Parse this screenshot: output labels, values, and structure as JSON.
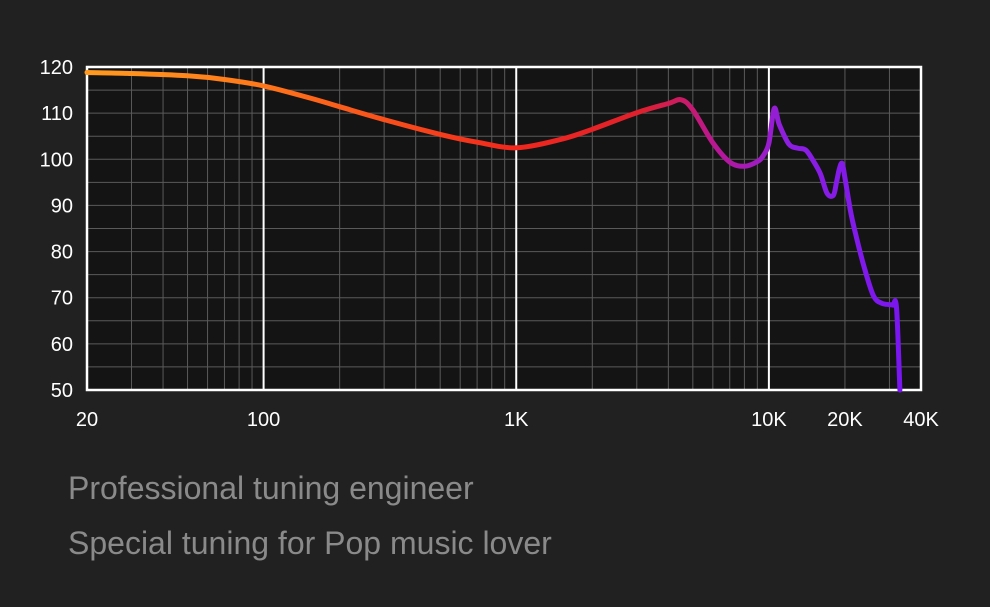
{
  "chart_data": {
    "type": "line",
    "title": "",
    "xlabel": "",
    "ylabel": "",
    "xscale": "log",
    "xlim": [
      20,
      40000
    ],
    "ylim": [
      50,
      120
    ],
    "grid": true,
    "x_ticks": [
      {
        "value": 20,
        "label": "20"
      },
      {
        "value": 100,
        "label": "100"
      },
      {
        "value": 1000,
        "label": "1K"
      },
      {
        "value": 10000,
        "label": "10K"
      },
      {
        "value": 20000,
        "label": "20K"
      },
      {
        "value": 40000,
        "label": "40K"
      }
    ],
    "y_ticks": [
      {
        "value": 120,
        "label": "120"
      },
      {
        "value": 110,
        "label": "110"
      },
      {
        "value": 100,
        "label": "100"
      },
      {
        "value": 90,
        "label": "90"
      },
      {
        "value": 80,
        "label": "80"
      },
      {
        "value": 70,
        "label": "70"
      },
      {
        "value": 60,
        "label": "60"
      },
      {
        "value": 50,
        "label": "50"
      }
    ],
    "series": [
      {
        "gradient_colors": [
          "#ff9a1f",
          "#ff7a1a",
          "#f2281c",
          "#e0202c",
          "#b5179a",
          "#8e1fe0",
          "#7a16f0"
        ],
        "x": [
          20,
          30,
          50,
          70,
          100,
          150,
          200,
          300,
          500,
          700,
          1000,
          1500,
          2000,
          3000,
          4000,
          4500,
          5000,
          6000,
          7000,
          8000,
          9000,
          9500,
          10000,
          10500,
          11000,
          12000,
          13000,
          14000,
          15000,
          16000,
          17000,
          18000,
          18500,
          19000,
          19500,
          20000,
          21000,
          22000,
          24000,
          26000,
          28000,
          30000,
          31000,
          32000,
          33000
        ],
        "values": [
          118.8,
          118.6,
          118.1,
          117.3,
          115.9,
          113.4,
          111.4,
          108.6,
          105.4,
          103.7,
          102.5,
          104.3,
          106.5,
          110.1,
          112.1,
          112.9,
          110.7,
          103.6,
          99.4,
          98.5,
          99.5,
          100.8,
          103.5,
          111.0,
          107.5,
          103.3,
          102.4,
          102.0,
          99.6,
          96.8,
          92.6,
          92.2,
          94.9,
          97.9,
          99.1,
          96.0,
          89.0,
          84.0,
          76.0,
          70.3,
          68.8,
          68.5,
          68.4,
          67.9,
          50.0
        ]
      }
    ]
  },
  "captions": {
    "line1": "Professional tuning engineer",
    "line2": "Special tuning for Pop music lover"
  },
  "colors": {
    "background": "#212121",
    "plot_background": "#141414",
    "grid_minor": "#5a5a5a",
    "grid_major": "#ffffff",
    "frame": "#ffffff",
    "caption": "#8a8a8a"
  }
}
